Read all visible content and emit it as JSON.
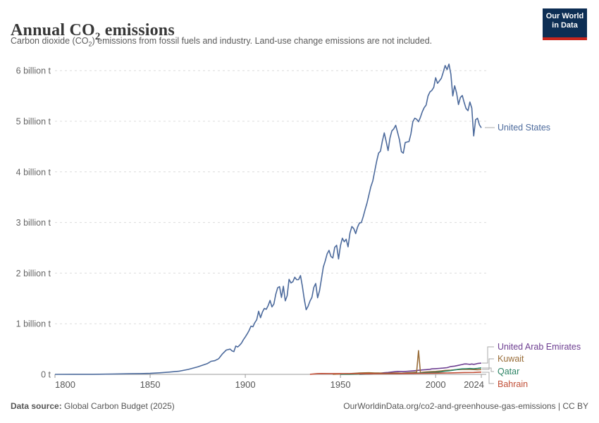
{
  "header": {
    "title": {
      "pre": "Annual CO",
      "sub": "2",
      "post": " emissions"
    },
    "subtitle": {
      "pre": "Carbon dioxide (CO",
      "sub": "2",
      "post": ") emissions from fossil fuels and industry. Land-use change emissions are not included."
    },
    "logo": {
      "line1": "Our World",
      "line2": "in Data",
      "bg_color": "#0d2e54",
      "bar_color": "#c9261d"
    }
  },
  "chart_data": {
    "type": "line",
    "title": "Annual CO2 emissions",
    "xlabel": "",
    "ylabel": "",
    "unit": "tonnes of CO2",
    "x_range": [
      1800,
      2024
    ],
    "y_range": [
      0,
      6000000000
    ],
    "grid": true,
    "legend_position": "right-of-line-ends",
    "y_ticks": [
      {
        "label": "6 billion t",
        "value": 6
      },
      {
        "label": "5 billion t",
        "value": 5
      },
      {
        "label": "4 billion t",
        "value": 4
      },
      {
        "label": "3 billion t",
        "value": 3
      },
      {
        "label": "2 billion t",
        "value": 2
      },
      {
        "label": "1 billion t",
        "value": 1
      },
      {
        "label": "0 t",
        "value": 0
      }
    ],
    "x_ticks": [
      {
        "label": "1800",
        "year": 1800
      },
      {
        "label": "1850",
        "year": 1850
      },
      {
        "label": "1900",
        "year": 1900
      },
      {
        "label": "1950",
        "year": 1950
      },
      {
        "label": "2000",
        "year": 2000
      },
      {
        "label": "2024",
        "year": 2024
      }
    ],
    "value_unit_note": "points are [year, billion tonnes CO2]",
    "series": [
      {
        "id": "united-states",
        "name": "United States",
        "color": "#4c6a9c",
        "points": [
          [
            1800,
            0.0003
          ],
          [
            1810,
            0.001
          ],
          [
            1820,
            0.002
          ],
          [
            1830,
            0.005
          ],
          [
            1840,
            0.012
          ],
          [
            1845,
            0.016
          ],
          [
            1850,
            0.02
          ],
          [
            1855,
            0.031
          ],
          [
            1860,
            0.045
          ],
          [
            1865,
            0.061
          ],
          [
            1870,
            0.098
          ],
          [
            1875,
            0.147
          ],
          [
            1880,
            0.212
          ],
          [
            1882,
            0.258
          ],
          [
            1884,
            0.27
          ],
          [
            1886,
            0.309
          ],
          [
            1888,
            0.405
          ],
          [
            1890,
            0.48
          ],
          [
            1892,
            0.498
          ],
          [
            1893,
            0.465
          ],
          [
            1894,
            0.448
          ],
          [
            1895,
            0.56
          ],
          [
            1896,
            0.54
          ],
          [
            1897,
            0.575
          ],
          [
            1898,
            0.618
          ],
          [
            1899,
            0.685
          ],
          [
            1900,
            0.74
          ],
          [
            1901,
            0.8
          ],
          [
            1902,
            0.868
          ],
          [
            1903,
            0.953
          ],
          [
            1904,
            0.94
          ],
          [
            1905,
            1.021
          ],
          [
            1906,
            1.08
          ],
          [
            1907,
            1.246
          ],
          [
            1908,
            1.12
          ],
          [
            1909,
            1.231
          ],
          [
            1910,
            1.302
          ],
          [
            1911,
            1.285
          ],
          [
            1912,
            1.358
          ],
          [
            1913,
            1.461
          ],
          [
            1914,
            1.333
          ],
          [
            1915,
            1.388
          ],
          [
            1916,
            1.58
          ],
          [
            1917,
            1.711
          ],
          [
            1918,
            1.733
          ],
          [
            1919,
            1.519
          ],
          [
            1920,
            1.74
          ],
          [
            1921,
            1.452
          ],
          [
            1922,
            1.553
          ],
          [
            1923,
            1.878
          ],
          [
            1924,
            1.807
          ],
          [
            1925,
            1.83
          ],
          [
            1926,
            1.919
          ],
          [
            1927,
            1.871
          ],
          [
            1928,
            1.872
          ],
          [
            1929,
            1.951
          ],
          [
            1930,
            1.738
          ],
          [
            1931,
            1.48
          ],
          [
            1932,
            1.277
          ],
          [
            1933,
            1.346
          ],
          [
            1934,
            1.448
          ],
          [
            1935,
            1.52
          ],
          [
            1936,
            1.717
          ],
          [
            1937,
            1.795
          ],
          [
            1938,
            1.513
          ],
          [
            1939,
            1.65
          ],
          [
            1940,
            1.881
          ],
          [
            1941,
            2.12
          ],
          [
            1942,
            2.24
          ],
          [
            1943,
            2.38
          ],
          [
            1944,
            2.45
          ],
          [
            1945,
            2.33
          ],
          [
            1946,
            2.3
          ],
          [
            1947,
            2.51
          ],
          [
            1948,
            2.55
          ],
          [
            1949,
            2.28
          ],
          [
            1950,
            2.54
          ],
          [
            1951,
            2.69
          ],
          [
            1952,
            2.62
          ],
          [
            1953,
            2.67
          ],
          [
            1954,
            2.52
          ],
          [
            1955,
            2.79
          ],
          [
            1956,
            2.92
          ],
          [
            1957,
            2.88
          ],
          [
            1958,
            2.78
          ],
          [
            1959,
            2.91
          ],
          [
            1960,
            2.99
          ],
          [
            1961,
            3.0
          ],
          [
            1962,
            3.12
          ],
          [
            1963,
            3.26
          ],
          [
            1964,
            3.39
          ],
          [
            1965,
            3.55
          ],
          [
            1966,
            3.71
          ],
          [
            1967,
            3.82
          ],
          [
            1968,
            4.02
          ],
          [
            1969,
            4.21
          ],
          [
            1970,
            4.37
          ],
          [
            1971,
            4.41
          ],
          [
            1972,
            4.61
          ],
          [
            1973,
            4.77
          ],
          [
            1974,
            4.6
          ],
          [
            1975,
            4.42
          ],
          [
            1976,
            4.67
          ],
          [
            1977,
            4.81
          ],
          [
            1978,
            4.85
          ],
          [
            1979,
            4.92
          ],
          [
            1980,
            4.78
          ],
          [
            1981,
            4.63
          ],
          [
            1982,
            4.4
          ],
          [
            1983,
            4.37
          ],
          [
            1984,
            4.58
          ],
          [
            1985,
            4.59
          ],
          [
            1986,
            4.6
          ],
          [
            1987,
            4.75
          ],
          [
            1988,
            4.99
          ],
          [
            1989,
            5.06
          ],
          [
            1990,
            5.04
          ],
          [
            1991,
            4.99
          ],
          [
            1992,
            5.08
          ],
          [
            1993,
            5.19
          ],
          [
            1994,
            5.27
          ],
          [
            1995,
            5.32
          ],
          [
            1996,
            5.5
          ],
          [
            1997,
            5.58
          ],
          [
            1998,
            5.61
          ],
          [
            1999,
            5.67
          ],
          [
            2000,
            5.86
          ],
          [
            2001,
            5.75
          ],
          [
            2002,
            5.8
          ],
          [
            2003,
            5.85
          ],
          [
            2004,
            5.97
          ],
          [
            2005,
            6.1
          ],
          [
            2006,
            6.02
          ],
          [
            2007,
            6.13
          ],
          [
            2008,
            5.93
          ],
          [
            2009,
            5.5
          ],
          [
            2010,
            5.7
          ],
          [
            2011,
            5.56
          ],
          [
            2012,
            5.33
          ],
          [
            2013,
            5.47
          ],
          [
            2014,
            5.51
          ],
          [
            2015,
            5.37
          ],
          [
            2016,
            5.25
          ],
          [
            2017,
            5.21
          ],
          [
            2018,
            5.38
          ],
          [
            2019,
            5.26
          ],
          [
            2020,
            4.71
          ],
          [
            2021,
            5.03
          ],
          [
            2022,
            5.06
          ],
          [
            2023,
            4.93
          ],
          [
            2024,
            4.87
          ]
        ]
      },
      {
        "id": "united-arab-emirates",
        "name": "United Arab Emirates",
        "color": "#6d3e91",
        "points": [
          [
            1960,
            0.001
          ],
          [
            1965,
            0.005
          ],
          [
            1968,
            0.012
          ],
          [
            1970,
            0.02
          ],
          [
            1973,
            0.032
          ],
          [
            1975,
            0.038
          ],
          [
            1977,
            0.046
          ],
          [
            1980,
            0.058
          ],
          [
            1983,
            0.055
          ],
          [
            1985,
            0.06
          ],
          [
            1988,
            0.068
          ],
          [
            1990,
            0.075
          ],
          [
            1993,
            0.088
          ],
          [
            1995,
            0.094
          ],
          [
            1997,
            0.1
          ],
          [
            1998,
            0.108
          ],
          [
            2000,
            0.113
          ],
          [
            2002,
            0.118
          ],
          [
            2004,
            0.124
          ],
          [
            2006,
            0.132
          ],
          [
            2008,
            0.155
          ],
          [
            2010,
            0.163
          ],
          [
            2012,
            0.178
          ],
          [
            2014,
            0.195
          ],
          [
            2015,
            0.205
          ],
          [
            2016,
            0.206
          ],
          [
            2017,
            0.202
          ],
          [
            2018,
            0.198
          ],
          [
            2019,
            0.205
          ],
          [
            2020,
            0.198
          ],
          [
            2021,
            0.205
          ],
          [
            2022,
            0.215
          ],
          [
            2023,
            0.218
          ],
          [
            2024,
            0.222
          ]
        ]
      },
      {
        "id": "kuwait",
        "name": "Kuwait",
        "color": "#996d39",
        "points": [
          [
            1946,
            0.002
          ],
          [
            1950,
            0.009
          ],
          [
            1955,
            0.015
          ],
          [
            1958,
            0.022
          ],
          [
            1960,
            0.026
          ],
          [
            1963,
            0.03
          ],
          [
            1965,
            0.032
          ],
          [
            1968,
            0.028
          ],
          [
            1970,
            0.026
          ],
          [
            1972,
            0.024
          ],
          [
            1975,
            0.022
          ],
          [
            1978,
            0.026
          ],
          [
            1980,
            0.028
          ],
          [
            1982,
            0.022
          ],
          [
            1985,
            0.03
          ],
          [
            1988,
            0.038
          ],
          [
            1990,
            0.043
          ],
          [
            1991,
            0.47
          ],
          [
            1992,
            0.032
          ],
          [
            1993,
            0.04
          ],
          [
            1995,
            0.048
          ],
          [
            1998,
            0.055
          ],
          [
            2000,
            0.058
          ],
          [
            2003,
            0.068
          ],
          [
            2005,
            0.078
          ],
          [
            2008,
            0.082
          ],
          [
            2010,
            0.09
          ],
          [
            2012,
            0.095
          ],
          [
            2014,
            0.098
          ],
          [
            2016,
            0.099
          ],
          [
            2018,
            0.098
          ],
          [
            2020,
            0.095
          ],
          [
            2022,
            0.092
          ],
          [
            2024,
            0.095
          ]
        ]
      },
      {
        "id": "qatar",
        "name": "Qatar",
        "color": "#2c8465",
        "points": [
          [
            1950,
            0.0003
          ],
          [
            1955,
            0.001
          ],
          [
            1960,
            0.004
          ],
          [
            1965,
            0.008
          ],
          [
            1970,
            0.012
          ],
          [
            1975,
            0.013
          ],
          [
            1980,
            0.016
          ],
          [
            1985,
            0.02
          ],
          [
            1990,
            0.025
          ],
          [
            1995,
            0.032
          ],
          [
            2000,
            0.041
          ],
          [
            2003,
            0.052
          ],
          [
            2005,
            0.063
          ],
          [
            2007,
            0.07
          ],
          [
            2010,
            0.088
          ],
          [
            2012,
            0.1
          ],
          [
            2014,
            0.108
          ],
          [
            2016,
            0.112
          ],
          [
            2018,
            0.115
          ],
          [
            2020,
            0.112
          ],
          [
            2022,
            0.119
          ],
          [
            2024,
            0.128
          ]
        ]
      },
      {
        "id": "bahrain",
        "name": "Bahrain",
        "color": "#c14e36",
        "points": [
          [
            1934,
            0.001
          ],
          [
            1936,
            0.008
          ],
          [
            1938,
            0.015
          ],
          [
            1940,
            0.017
          ],
          [
            1945,
            0.015
          ],
          [
            1950,
            0.016
          ],
          [
            1955,
            0.014
          ],
          [
            1960,
            0.012
          ],
          [
            1965,
            0.011
          ],
          [
            1970,
            0.012
          ],
          [
            1975,
            0.014
          ],
          [
            1980,
            0.016
          ],
          [
            1985,
            0.018
          ],
          [
            1990,
            0.019
          ],
          [
            1995,
            0.021
          ],
          [
            2000,
            0.023
          ],
          [
            2005,
            0.027
          ],
          [
            2010,
            0.031
          ],
          [
            2015,
            0.036
          ],
          [
            2020,
            0.038
          ],
          [
            2022,
            0.041
          ],
          [
            2024,
            0.044
          ]
        ]
      }
    ]
  },
  "footer": {
    "source_label": "Data source:",
    "source_value": " Global Carbon Budget (2025)",
    "rights": "OurWorldinData.org/co2-and-greenhouse-gas-emissions | CC BY"
  }
}
